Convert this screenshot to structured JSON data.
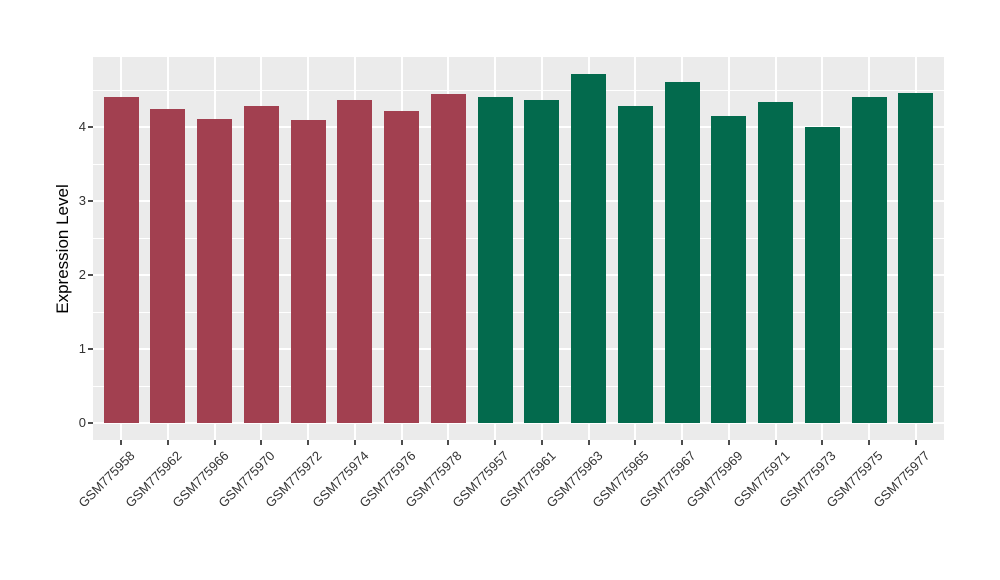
{
  "chart_data": {
    "type": "bar",
    "title": "",
    "xlabel": "",
    "ylabel": "Expression Level",
    "ylim": [
      0,
      4.95
    ],
    "yticks": [
      0,
      1,
      2,
      3,
      4
    ],
    "yticks_minor": [
      0.5,
      1.5,
      2.5,
      3.5,
      4.5
    ],
    "grid": "on",
    "legend": "none",
    "panel_bg": "#ebebeb",
    "grid_color": "#ffffff",
    "categories": [
      "GSM775958",
      "GSM775962",
      "GSM775966",
      "GSM775970",
      "GSM775972",
      "GSM775974",
      "GSM775976",
      "GSM775978",
      "GSM775957",
      "GSM775961",
      "GSM775963",
      "GSM775965",
      "GSM775967",
      "GSM775969",
      "GSM775971",
      "GSM775973",
      "GSM775975",
      "GSM775977"
    ],
    "values": [
      4.41,
      4.24,
      4.11,
      4.28,
      4.09,
      4.36,
      4.21,
      4.45,
      4.4,
      4.37,
      4.72,
      4.28,
      4.61,
      4.15,
      4.34,
      4.0,
      4.41,
      4.46
    ],
    "bar_groups": [
      0,
      0,
      0,
      0,
      0,
      0,
      0,
      0,
      1,
      1,
      1,
      1,
      1,
      1,
      1,
      1,
      1,
      1
    ],
    "groups": [
      {
        "name": "group-maroon",
        "color": "#a24050"
      },
      {
        "name": "group-green",
        "color": "#036a4d"
      }
    ]
  }
}
